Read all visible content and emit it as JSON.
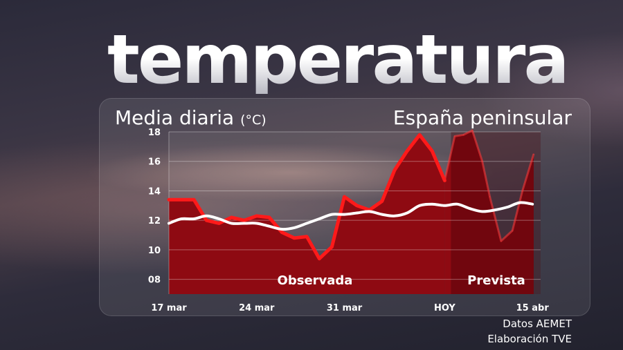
{
  "header": {
    "title": "temperatura",
    "subtitle": "Media diaria",
    "subtitle_unit": "(°C)",
    "region": "España peninsular"
  },
  "footer": {
    "source": "Datos AEMET",
    "credit": "Elaboración TVE"
  },
  "chart_data": {
    "type": "area",
    "ylim": [
      7,
      18
    ],
    "y_ticks": [
      {
        "value": 18,
        "label": "18"
      },
      {
        "value": 16,
        "label": "16"
      },
      {
        "value": 14,
        "label": "14"
      },
      {
        "value": 12,
        "label": "12"
      },
      {
        "value": 10,
        "label": "10"
      },
      {
        "value": 8,
        "label": "08"
      }
    ],
    "x_ticks": [
      {
        "day": 0,
        "label": "17 mar"
      },
      {
        "day": 7,
        "label": "24 mar"
      },
      {
        "day": 14,
        "label": "31 mar"
      },
      {
        "day": 22,
        "label": "HOY"
      },
      {
        "day": 29,
        "label": "15 abr"
      }
    ],
    "xlim": [
      0,
      29.5
    ],
    "forecast_start_day": 22.5,
    "region_labels": {
      "observed": "Observada",
      "forecast": "Prevista"
    },
    "colors": {
      "observed": "#ff1a1a",
      "area": "#8e0a12",
      "area_forecast": "#5a0a12",
      "mean": "#ffffff"
    },
    "series": [
      {
        "key": "observed",
        "days": [
          0,
          1,
          2,
          3,
          4,
          5,
          6,
          7,
          8,
          9,
          10,
          11,
          12,
          13,
          14,
          15,
          16,
          17,
          18,
          19,
          20,
          21,
          22
        ],
        "values": [
          13.4,
          13.4,
          13.4,
          12.0,
          11.8,
          12.2,
          12.0,
          12.3,
          12.2,
          11.2,
          10.8,
          10.9,
          9.4,
          10.2,
          13.6,
          13.0,
          12.7,
          13.3,
          15.4,
          16.7,
          17.8,
          16.7,
          14.7
        ]
      },
      {
        "key": "forecast",
        "days": [
          22,
          22.8,
          23.5,
          24.2,
          25,
          25.6,
          26.5,
          27.4,
          28.2,
          29.1
        ],
        "values": [
          14.7,
          17.7,
          17.8,
          18.1,
          16.0,
          13.6,
          10.6,
          11.3,
          14.0,
          16.5
        ]
      },
      {
        "key": "mean",
        "days": [
          0,
          1,
          2,
          3,
          4,
          5,
          6,
          7,
          8,
          9,
          10,
          11,
          12,
          13,
          14,
          15,
          16,
          17,
          18,
          19,
          20,
          21,
          22,
          23,
          24,
          25,
          26,
          27,
          28,
          29
        ],
        "values": [
          11.8,
          12.1,
          12.1,
          12.3,
          12.1,
          11.8,
          11.8,
          11.8,
          11.6,
          11.4,
          11.5,
          11.8,
          12.1,
          12.4,
          12.4,
          12.5,
          12.6,
          12.4,
          12.3,
          12.5,
          13.0,
          13.1,
          13.0,
          13.1,
          12.8,
          12.6,
          12.7,
          12.9,
          13.2,
          13.1
        ]
      }
    ]
  }
}
